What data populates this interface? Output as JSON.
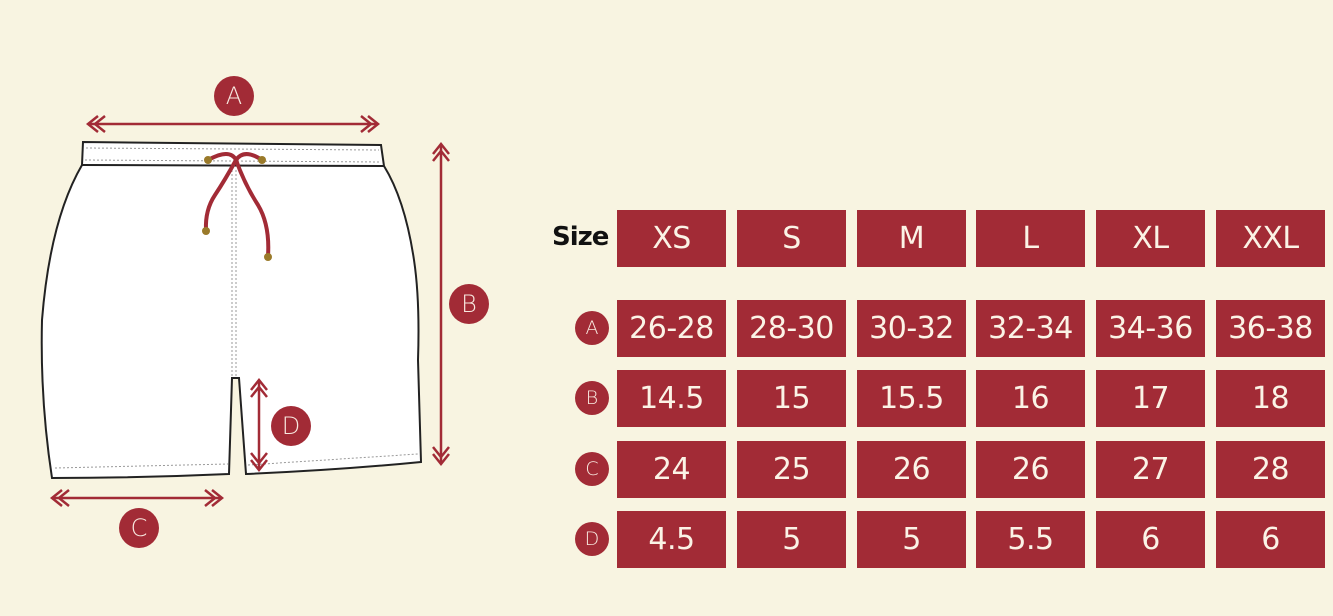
{
  "colors": {
    "background": "#f8f4e1",
    "accent": "#a22b36",
    "text_on_accent": "#fbf3e6"
  },
  "diagram": {
    "labels": [
      "A",
      "B",
      "C",
      "D"
    ]
  },
  "table": {
    "size_label": "Size",
    "sizes": [
      "XS",
      "S",
      "M",
      "L",
      "XL",
      "XXL"
    ],
    "rows": [
      {
        "label": "A",
        "values": [
          "26-28",
          "28-30",
          "30-32",
          "32-34",
          "34-36",
          "36-38"
        ]
      },
      {
        "label": "B",
        "values": [
          "14.5",
          "15",
          "15.5",
          "16",
          "17",
          "18"
        ]
      },
      {
        "label": "C",
        "values": [
          "24",
          "25",
          "26",
          "26",
          "27",
          "28"
        ]
      },
      {
        "label": "D",
        "values": [
          "4.5",
          "5",
          "5",
          "5.5",
          "6",
          "6"
        ]
      }
    ]
  }
}
